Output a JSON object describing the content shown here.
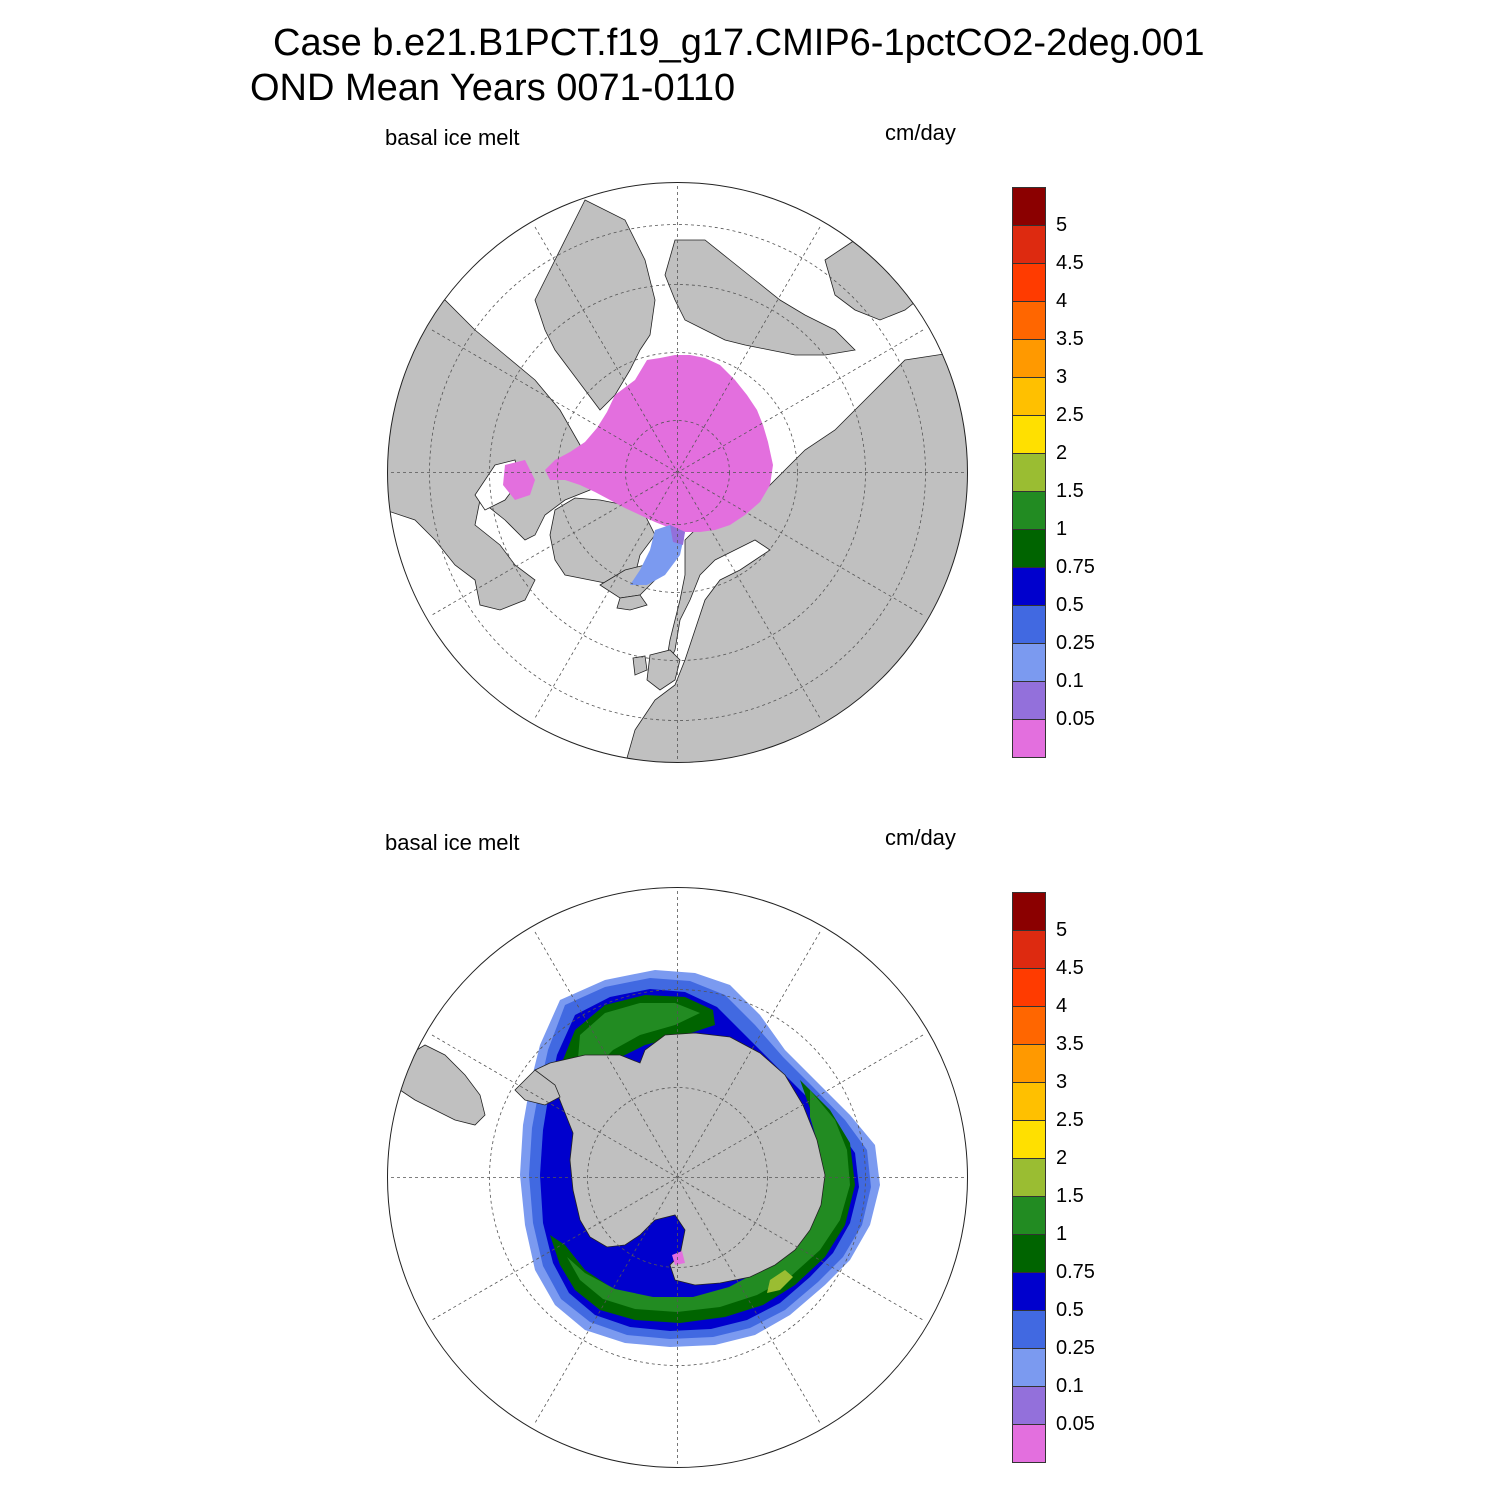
{
  "figure": {
    "title_line1": "Case b.e21.B1PCT.f19_g17.CMIP6-1pctCO2-2deg.001",
    "title_line2": "OND Mean   Years 0071-0110"
  },
  "panels": [
    {
      "id": "north",
      "variable_label": "basal ice melt",
      "units_label": "cm/day",
      "hemisphere": "northern polar stereographic",
      "land_color": "#c0c0c0",
      "ocean_color": "#ffffff",
      "dominant_value_class": "<0.05"
    },
    {
      "id": "south",
      "variable_label": "basal ice melt",
      "units_label": "cm/day",
      "hemisphere": "southern polar stereographic",
      "land_color": "#c0c0c0",
      "ocean_color": "#ffffff",
      "dominant_value_class": "0.25-1.5"
    }
  ],
  "colorbar": {
    "labels": [
      "5",
      "4.5",
      "4",
      "3.5",
      "3",
      "2.5",
      "2",
      "1.5",
      "1",
      "0.75",
      "0.5",
      "0.25",
      "0.1",
      "0.05"
    ],
    "colors": [
      "#8b0000",
      "#dd2a10",
      "#ff3b00",
      "#ff6600",
      "#ff9900",
      "#ffc000",
      "#ffe000",
      "#9abd32",
      "#228b22",
      "#006400",
      "#0000cd",
      "#4169e1",
      "#7b9af0",
      "#9370db",
      "#e36fde"
    ]
  }
}
